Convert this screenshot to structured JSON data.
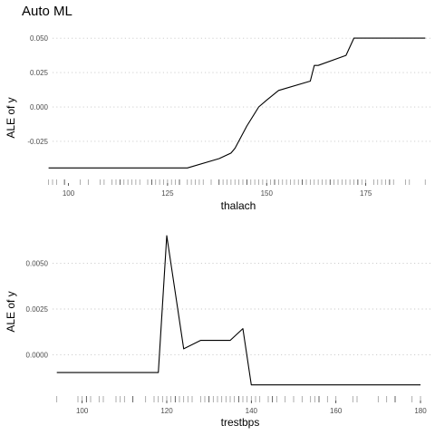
{
  "title": "Auto ML",
  "colors": {
    "line": "#000000",
    "grid": "#c8c8c8",
    "rug": "#9a9a9a",
    "rug_dark": "#3a3a3a"
  },
  "chart_data": [
    {
      "type": "line",
      "xlabel": "thalach",
      "ylabel": "ALE of y",
      "xlim": [
        96,
        192
      ],
      "ylim": [
        -0.054,
        0.058
      ],
      "grid": "horizontal dotted",
      "xticks": [
        100,
        125,
        150,
        175
      ],
      "xtick_labels": [
        "100",
        "125",
        "150",
        "175"
      ],
      "yticks": [
        0.05,
        0.025,
        0.0,
        -0.025
      ],
      "ytick_labels": [
        "0.050",
        "0.025",
        "0.000",
        "-0.025"
      ],
      "series": [
        {
          "x": [
            95,
            130,
            138,
            141,
            142,
            145,
            148,
            150,
            153,
            161,
            162,
            163,
            170,
            172,
            179,
            190
          ],
          "y": [
            -0.0443,
            -0.0443,
            -0.0375,
            -0.0335,
            -0.03,
            -0.0138,
            0.0,
            0.005,
            0.012,
            0.0188,
            0.0302,
            0.0302,
            0.0375,
            0.05,
            0.05,
            0.05
          ]
        }
      ],
      "rug": [
        95,
        96,
        97,
        99,
        103,
        105,
        108,
        109,
        111,
        112,
        113,
        114,
        115,
        116,
        117,
        118,
        120,
        121,
        122,
        123,
        124,
        125,
        126,
        127,
        128,
        130,
        131,
        132,
        133,
        134,
        136,
        138,
        139,
        140,
        141,
        142,
        143,
        144,
        145,
        146,
        147,
        148,
        149,
        150,
        151,
        152,
        153,
        154,
        155,
        156,
        157,
        158,
        159,
        160,
        161,
        162,
        163,
        164,
        165,
        166,
        167,
        168,
        169,
        170,
        171,
        172,
        173,
        174,
        175,
        177,
        178,
        179,
        180,
        181,
        182,
        185,
        186,
        190
      ]
    },
    {
      "type": "line",
      "xlabel": "trestbps",
      "ylabel": "ALE of y",
      "xlim": [
        93,
        183
      ],
      "ylim": [
        -0.0022,
        0.0072
      ],
      "grid": "horizontal dotted",
      "xticks": [
        100,
        120,
        140,
        160,
        180
      ],
      "xtick_labels": [
        "100",
        "120",
        "140",
        "160",
        "180"
      ],
      "yticks": [
        0.005,
        0.0025,
        0.0
      ],
      "ytick_labels": [
        "0.0050",
        "0.0025",
        "0.0000"
      ],
      "series": [
        {
          "x": [
            94,
            118,
            120,
            124,
            128,
            132,
            135,
            138,
            140,
            180
          ],
          "y": [
            -0.00097,
            -0.00097,
            0.0065,
            0.00033,
            0.00079,
            0.00079,
            0.00079,
            0.00143,
            -0.00164,
            -0.00164
          ]
        }
      ],
      "rug": [
        94,
        99,
        100,
        101,
        102,
        104,
        105,
        108,
        109,
        110,
        112,
        115,
        117,
        118,
        119,
        120,
        121,
        122,
        123,
        124,
        125,
        126,
        128,
        129,
        130,
        131,
        132,
        133,
        134,
        135,
        136,
        137,
        138,
        139,
        140,
        141,
        142,
        144,
        145,
        146,
        148,
        150,
        152,
        154,
        155,
        156,
        158,
        160,
        164,
        165,
        170,
        172,
        174,
        178,
        180
      ]
    }
  ]
}
